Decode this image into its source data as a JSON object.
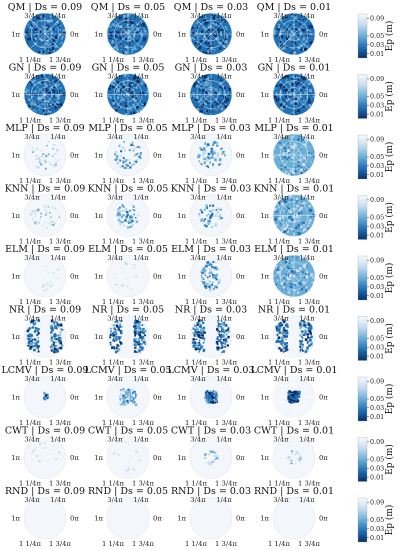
{
  "chart_data": {
    "type": "heatmap",
    "description_kind": "polar-disc-grid",
    "methods": [
      "QM",
      "GN",
      "MLP",
      "KNN",
      "ELM",
      "NR",
      "LCMV",
      "CWT",
      "RND"
    ],
    "ds_values": [
      "0.09",
      "0.05",
      "0.03",
      "0.01"
    ],
    "title_template": "{method} | Ds = {ds}",
    "angle_labels": {
      "top_left": "3/4π",
      "top_right": "1/4π",
      "left": "1π",
      "right": "0π",
      "bottom_left": "1 1/4π",
      "bottom_right": "1 3/4π"
    },
    "colorbar": {
      "label": "Ep (m)",
      "ticks": [
        "0.09",
        "0.05",
        "0.03",
        "0.01"
      ],
      "tick_values": [
        0.09,
        0.05,
        0.03,
        0.01
      ],
      "range": [
        0,
        0.1
      ],
      "colormap": "Blues_r"
    },
    "panel_patterns": [
      [
        "full-dense",
        "full-dense",
        "full-dense",
        "full-dense"
      ],
      [
        "full-dense",
        "full-dense",
        "full-dense",
        "full-dense"
      ],
      [
        "faint-speckle",
        "ring-speckle",
        "center-blob-light",
        "full-medium"
      ],
      [
        "faint-speckle",
        "center-speckle",
        "center-speckle",
        "full-medium"
      ],
      [
        "very-faint",
        "very-faint",
        "vertical-blob",
        "full-medium"
      ],
      [
        "left-right-lobes",
        "left-right-lobes",
        "left-right-lobes",
        "left-right-lobes"
      ],
      [
        "small-center",
        "square-center",
        "dense-center",
        "dark-center-grid"
      ],
      [
        "very-faint",
        "very-faint",
        "small-ring",
        "small-ring"
      ],
      [
        "empty",
        "empty",
        "empty",
        "empty"
      ]
    ],
    "colors": {
      "dark": "#08306b",
      "mid": "#2171b5",
      "light": "#6baed6",
      "pale": "#c6dbef",
      "disc_bg": "#f3f6fa",
      "grid_line": "#ffffff"
    }
  }
}
